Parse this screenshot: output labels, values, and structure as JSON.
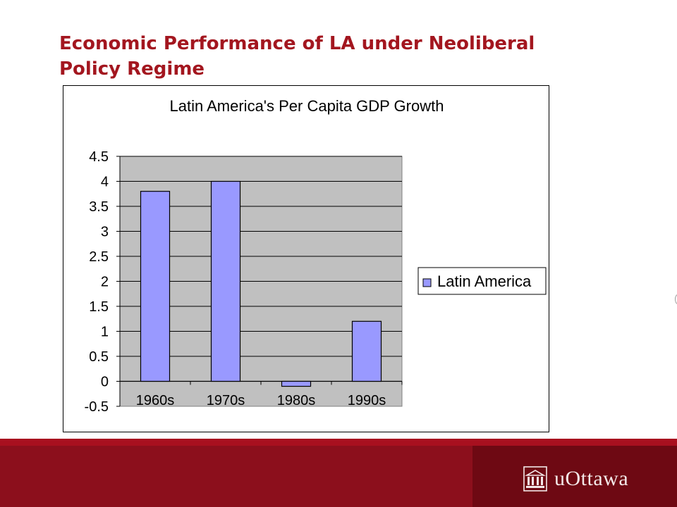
{
  "slide": {
    "title": "Economic Performance of LA under Neoliberal Policy Regime",
    "logo_text": "uOttawa",
    "logo_icon": "building-icon",
    "colors": {
      "title": "#a3161f",
      "footer": "#8c0f1c",
      "footer_dark": "#6e0913"
    }
  },
  "chart_data": {
    "type": "bar",
    "title": "Latin America's Per Capita GDP Growth",
    "categories": [
      "1960s",
      "1970s",
      "1980s",
      "1990s"
    ],
    "series": [
      {
        "name": "Latin America",
        "values": [
          3.8,
          4.0,
          -0.1,
          1.2
        ],
        "color": "#9999ff"
      }
    ],
    "ylim": [
      -0.5,
      4.5
    ],
    "yticks": [
      "4.5",
      "4",
      "3.5",
      "3",
      "2.5",
      "2",
      "1.5",
      "1",
      "0.5",
      "0",
      "-0.5"
    ],
    "grid": true,
    "legend": "right",
    "plot_background": "#c0c0c0"
  }
}
